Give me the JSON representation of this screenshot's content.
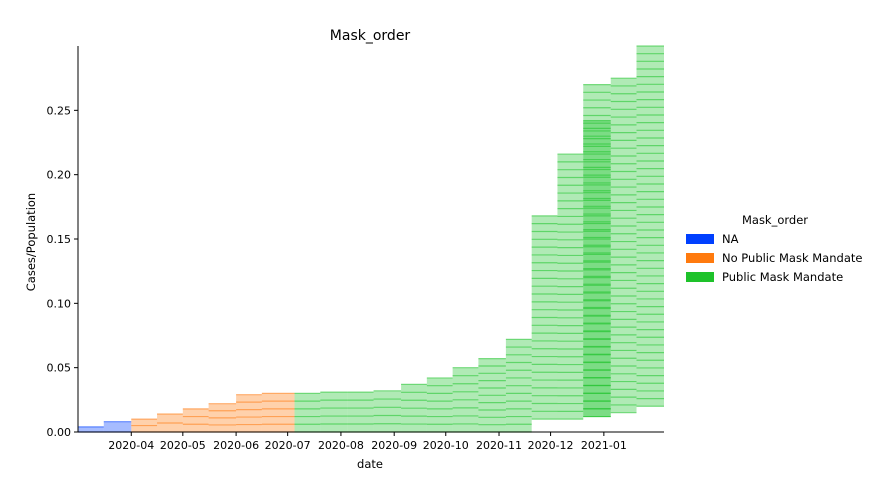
{
  "chart_data": {
    "type": "area",
    "title": "Mask_order",
    "xlabel": "date",
    "ylabel": "Cases/Population",
    "xlim": [
      "2020-03-01",
      "2021-02-05"
    ],
    "ylim": [
      0,
      0.3
    ],
    "x_tick_labels": [
      "2020-04",
      "2020-05",
      "2020-06",
      "2020-07",
      "2020-08",
      "2020-09",
      "2020-10",
      "2020-11",
      "2020-12",
      "2021-01"
    ],
    "y_tick_labels": [
      "0.00",
      "0.05",
      "0.10",
      "0.15",
      "0.20",
      "0.25"
    ],
    "y_ticks": [
      0,
      0.05,
      0.1,
      0.15,
      0.2,
      0.25
    ],
    "grid": false,
    "legend": {
      "title": "Mask_order",
      "placement": "right",
      "entries": [
        "NA",
        "No Public Mask Mandate",
        "Public Mask Mandate"
      ]
    },
    "colors": {
      "NA": "#0040ff",
      "No Public Mask Mandate": "#ff7a0e",
      "Public Mask Mandate": "#1ec22a"
    },
    "series": [
      {
        "name": "NA",
        "color": "#0040ff",
        "bands": [
          {
            "start": "2020-03-01",
            "end": "2020-03-16",
            "low": 0,
            "high": 0.004
          },
          {
            "start": "2020-03-16",
            "end": "2020-04-01",
            "low": 0,
            "high": 0.008
          }
        ]
      },
      {
        "name": "No Public Mask Mandate",
        "color": "#ff7a0e",
        "bands": [
          {
            "start": "2020-04-01",
            "end": "2020-04-16",
            "low": 0,
            "high": 0.01
          },
          {
            "start": "2020-04-16",
            "end": "2020-05-01",
            "low": 0,
            "high": 0.014
          },
          {
            "start": "2020-05-01",
            "end": "2020-05-16",
            "low": 0,
            "high": 0.018
          },
          {
            "start": "2020-05-16",
            "end": "2020-06-01",
            "low": 0,
            "high": 0.022
          },
          {
            "start": "2020-06-01",
            "end": "2020-06-16",
            "low": 0,
            "high": 0.029
          },
          {
            "start": "2020-06-16",
            "end": "2020-07-05",
            "low": 0,
            "high": 0.03
          }
        ]
      },
      {
        "name": "Public Mask Mandate",
        "color": "#1ec22a",
        "bands": [
          {
            "start": "2020-07-05",
            "end": "2020-07-20",
            "low": 0,
            "high": 0.03
          },
          {
            "start": "2020-07-20",
            "end": "2020-08-05",
            "low": 0,
            "high": 0.031
          },
          {
            "start": "2020-08-05",
            "end": "2020-08-20",
            "low": 0,
            "high": 0.031
          },
          {
            "start": "2020-08-20",
            "end": "2020-09-05",
            "low": 0,
            "high": 0.032
          },
          {
            "start": "2020-09-05",
            "end": "2020-09-20",
            "low": 0,
            "high": 0.037
          },
          {
            "start": "2020-09-20",
            "end": "2020-10-05",
            "low": 0,
            "high": 0.042
          },
          {
            "start": "2020-10-05",
            "end": "2020-10-20",
            "low": 0,
            "high": 0.05
          },
          {
            "start": "2020-10-20",
            "end": "2020-11-05",
            "low": 0,
            "high": 0.057
          },
          {
            "start": "2020-11-05",
            "end": "2020-11-20",
            "low": 0,
            "high": 0.072
          },
          {
            "start": "2020-11-20",
            "end": "2020-12-05",
            "low": 0.01,
            "high": 0.168
          },
          {
            "start": "2020-12-05",
            "end": "2020-12-20",
            "low": 0.01,
            "high": 0.216
          },
          {
            "start": "2020-12-20",
            "end": "2021-01-05",
            "low": 0.012,
            "high": 0.242
          },
          {
            "start": "2020-12-20",
            "end": "2021-01-05",
            "low": 0.012,
            "high": 0.27
          },
          {
            "start": "2021-01-05",
            "end": "2021-01-20",
            "low": 0.015,
            "high": 0.275
          },
          {
            "start": "2021-01-20",
            "end": "2021-02-05",
            "low": 0.02,
            "high": 0.3
          }
        ]
      }
    ]
  }
}
